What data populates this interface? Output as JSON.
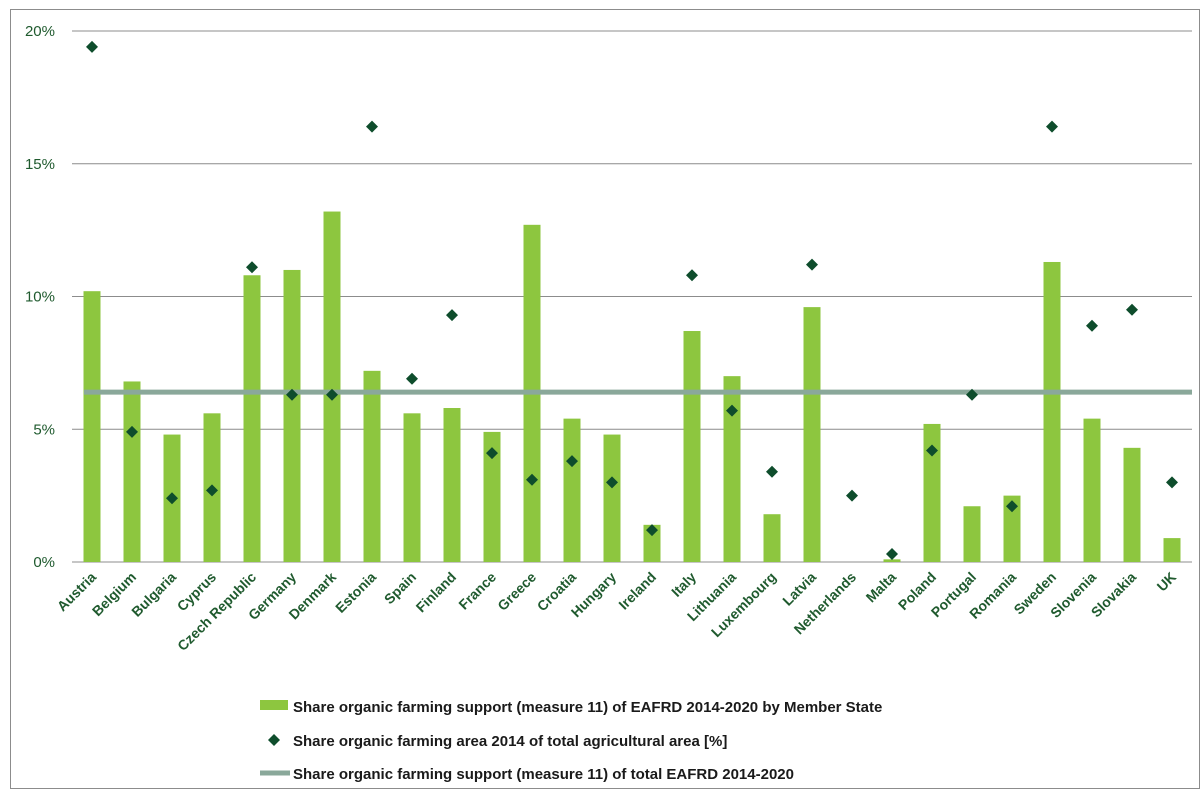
{
  "colors": {
    "bar": "#8dc63f",
    "marker": "#0e4d2c",
    "line": "#8aa89a",
    "grid": "#8c8c8c",
    "text": "#1f5a2e"
  },
  "chart_data": {
    "type": "bar",
    "title": "",
    "xlabel": "",
    "ylabel": "",
    "ylim": [
      0,
      0.2
    ],
    "y_ticks": [
      {
        "value": 0,
        "label": "0%"
      },
      {
        "value": 0.05,
        "label": "5%"
      },
      {
        "value": 0.1,
        "label": "10%"
      },
      {
        "value": 0.15,
        "label": "15%"
      },
      {
        "value": 0.2,
        "label": "20%"
      }
    ],
    "grid": true,
    "legend_position": "bottom",
    "categories": [
      "Austria",
      "Belgium",
      "Bulgaria",
      "Cyprus",
      "Czech Republic",
      "Germany",
      "Denmark",
      "Estonia",
      "Spain",
      "Finland",
      "France",
      "Greece",
      "Croatia",
      "Hungary",
      "Ireland",
      "Italy",
      "Lithuania",
      "Luxembourg",
      "Latvia",
      "Netherlands",
      "Malta",
      "Poland",
      "Portugal",
      "Romania",
      "Sweden",
      "Slovenia",
      "Slovakia",
      "UK"
    ],
    "series": [
      {
        "name": "Share organic farming support (measure 11) of EAFRD 2014-2020 by Member State",
        "kind": "bar",
        "values": [
          0.102,
          0.068,
          0.048,
          0.056,
          0.108,
          0.11,
          0.132,
          0.072,
          0.056,
          0.058,
          0.049,
          0.127,
          0.054,
          0.048,
          0.014,
          0.087,
          0.07,
          0.018,
          0.096,
          0.0,
          0.001,
          0.052,
          0.021,
          0.025,
          0.113,
          0.054,
          0.043,
          0.009
        ]
      },
      {
        "name": "Share organic farming area 2014 of total agricultural area [%]",
        "kind": "scatter",
        "values": [
          0.194,
          0.049,
          0.024,
          0.027,
          0.111,
          0.063,
          0.063,
          0.164,
          0.069,
          0.093,
          0.041,
          0.031,
          0.038,
          0.03,
          0.012,
          0.108,
          0.057,
          0.034,
          0.112,
          0.025,
          0.003,
          0.042,
          0.063,
          0.021,
          0.164,
          0.089,
          0.095,
          0.03
        ]
      },
      {
        "name": "Share organic farming support (measure 11) of total EAFRD 2014-2020",
        "kind": "line",
        "value": 0.064
      }
    ]
  }
}
